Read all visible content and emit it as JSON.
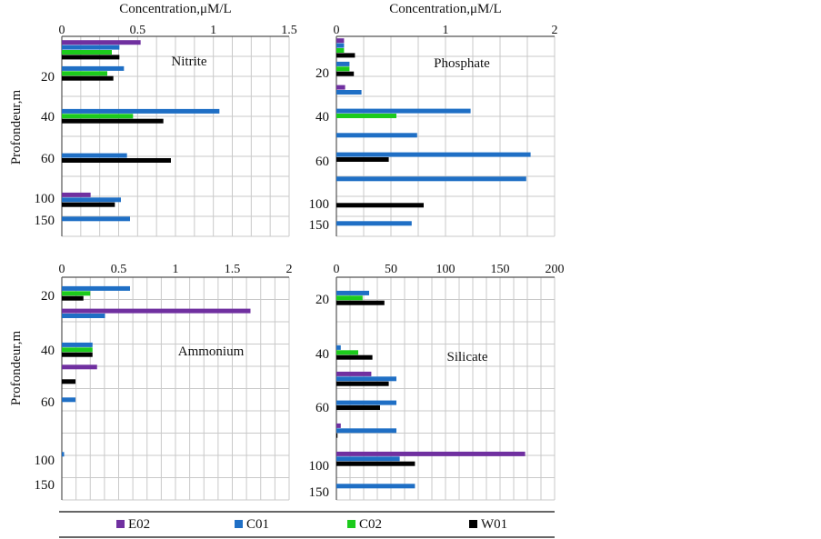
{
  "colors": {
    "E02": "#7030A0",
    "C01": "#1F6FC5",
    "C02": "#1CCB1C",
    "W01": "#000000"
  },
  "legend": {
    "items": [
      {
        "key": "E02",
        "label": "E02"
      },
      {
        "key": "C01",
        "label": "C01"
      },
      {
        "key": "C02",
        "label": "C02"
      },
      {
        "key": "W01",
        "label": "W01"
      }
    ]
  },
  "y_axis_label": "Profondeur,m",
  "chart_data": [
    {
      "id": "nitrite",
      "type": "bar",
      "orientation": "horizontal",
      "label": "Nitrite",
      "xlabel": "Concentration,μM/L",
      "xlim": [
        0,
        1.5
      ],
      "xticks": [
        "0",
        "0.5",
        "1",
        "1.5"
      ],
      "depth_labels": [
        "20",
        "40",
        "60",
        "100",
        "150"
      ],
      "rows": [
        {
          "E02": 0.52,
          "C01": 0.38,
          "C02": 0.33,
          "W01": 0.38
        },
        {
          "C01": 0.41,
          "C02": 0.3,
          "W01": 0.34
        },
        {
          "C01": 1.04,
          "C02": 0.47,
          "W01": 0.67
        },
        {
          "C01": 0.43,
          "W01": 0.72
        },
        {
          "E02": 0.19,
          "C01": 0.39,
          "W01": 0.35
        },
        {
          "C01": 0.45
        }
      ]
    },
    {
      "id": "phosphate",
      "type": "bar",
      "orientation": "horizontal",
      "label": "Phosphate",
      "xlabel": "Concentration,μM/L",
      "xlim": [
        0,
        2
      ],
      "xticks": [
        "0",
        "1",
        "2"
      ],
      "depth_labels": [
        "20",
        "40",
        "60",
        "100",
        "150"
      ],
      "rows": [
        {
          "E02": 0.07,
          "C01": 0.07,
          "C02": 0.07,
          "W01": 0.17
        },
        {
          "C01": 0.12,
          "C02": 0.12,
          "W01": 0.16
        },
        {
          "E02": 0.08,
          "C01": 0.23
        },
        {
          "C01": 1.23,
          "C02": 0.55
        },
        {
          "C01": 0.74
        },
        {
          "C01": 1.78,
          "W01": 0.48
        },
        {
          "C01": 1.74
        },
        {
          "W01": 0.8
        },
        {
          "C01": 0.69
        }
      ]
    },
    {
      "id": "ammonium",
      "type": "bar",
      "orientation": "horizontal",
      "label": "Ammonium",
      "xlabel": "",
      "xlim": [
        0,
        2
      ],
      "xticks": [
        "0",
        "0.5",
        "1",
        "1.5",
        "2"
      ],
      "depth_labels": [
        "20",
        "40",
        "60",
        "100",
        "150"
      ],
      "rows": [
        {
          "C01": 0.6,
          "C02": 0.25,
          "W01": 0.19
        },
        {
          "E02": 1.66,
          "C01": 0.38
        },
        {
          "C01": 0.27,
          "C02": 0.27,
          "W01": 0.27
        },
        {
          "E02": 0.31
        },
        {
          "W01": 0.12
        },
        {
          "C01": 0.12
        },
        {
          "C01": 0.02
        }
      ]
    },
    {
      "id": "silicate",
      "type": "bar",
      "orientation": "horizontal",
      "label": "Silicate",
      "xlabel": "",
      "xlim": [
        0,
        200
      ],
      "xticks": [
        "0",
        "50",
        "100",
        "150",
        "200"
      ],
      "depth_labels": [
        "20",
        "40",
        "60",
        "100",
        "150"
      ],
      "rows": [
        {
          "C01": 30,
          "C02": 24,
          "W01": 44
        },
        {
          "C01": 4,
          "C02": 20,
          "W01": 33
        },
        {
          "E02": 32,
          "C01": 55,
          "W01": 48
        },
        {
          "C01": 55,
          "W01": 40
        },
        {
          "E02": 4,
          "C01": 55,
          "W01": 1
        },
        {
          "E02": 173,
          "C01": 58,
          "W01": 72
        },
        {
          "C01": 72
        }
      ]
    }
  ]
}
